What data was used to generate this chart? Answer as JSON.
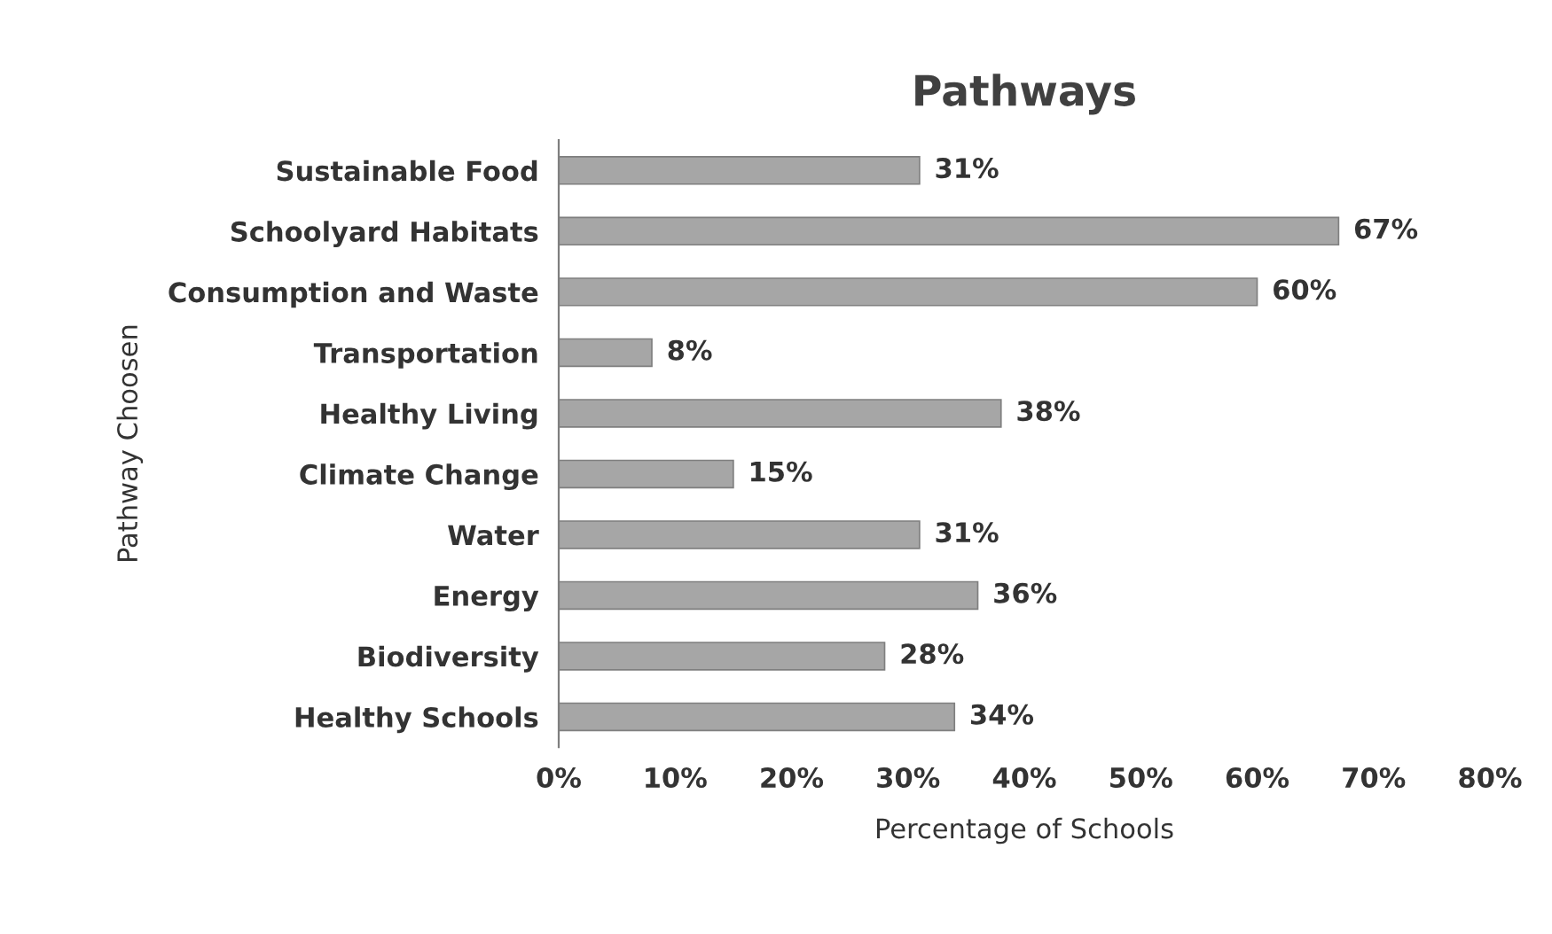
{
  "chart_data": {
    "type": "bar",
    "orientation": "horizontal",
    "title": "Pathways",
    "xlabel": "Percentage of Schools",
    "ylabel": "Pathway Choosen",
    "categories": [
      "Sustainable Food",
      "Schoolyard Habitats",
      "Consumption and Waste",
      "Transportation",
      "Healthy Living",
      "Climate Change",
      "Water",
      "Energy",
      "Biodiversity",
      "Healthy Schools"
    ],
    "values": [
      31,
      67,
      60,
      8,
      38,
      15,
      31,
      36,
      28,
      34
    ],
    "value_labels": [
      "31%",
      "67%",
      "60%",
      "8%",
      "38%",
      "15%",
      "31%",
      "36%",
      "28%",
      "34%"
    ],
    "color": "#a6a6a6",
    "xlim": [
      0,
      80
    ],
    "xticks": [
      {
        "value": 0,
        "label": "0%"
      },
      {
        "value": 10,
        "label": "10%"
      },
      {
        "value": 20,
        "label": "20%"
      },
      {
        "value": 30,
        "label": "30%"
      },
      {
        "value": 40,
        "label": "40%"
      },
      {
        "value": 50,
        "label": "50%"
      },
      {
        "value": 60,
        "label": "60%"
      },
      {
        "value": 70,
        "label": "70%"
      },
      {
        "value": 80,
        "label": "80%"
      }
    ],
    "grid": false,
    "legend": false
  }
}
